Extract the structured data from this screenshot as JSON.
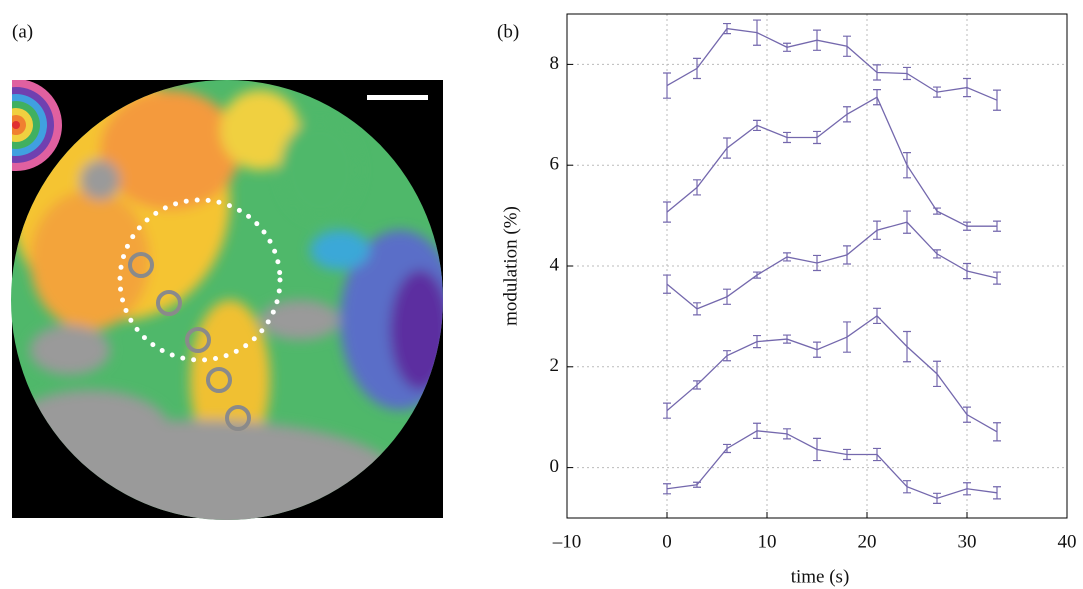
{
  "panel_a_label": "(a)",
  "chart_data": {
    "type": "line",
    "panel_label": "(b)",
    "xlabel": "time (s)",
    "ylabel": "modulation (%)",
    "x": [
      0,
      3,
      6,
      9,
      12,
      15,
      18,
      21,
      24,
      27,
      30,
      33
    ],
    "series": [
      {
        "color": "#7468ad",
        "values": [
          7.58,
          7.92,
          8.71,
          8.63,
          8.34,
          8.48,
          8.36,
          7.84,
          7.82,
          7.45,
          7.54,
          7.29
        ],
        "errors": [
          0.25,
          0.2,
          0.1,
          0.25,
          0.08,
          0.2,
          0.2,
          0.15,
          0.12,
          0.1,
          0.18,
          0.2
        ]
      },
      {
        "color": "#7468ad",
        "values": [
          5.07,
          5.56,
          6.34,
          6.79,
          6.55,
          6.55,
          7.01,
          7.35,
          6.0,
          5.09,
          4.79,
          4.79
        ],
        "errors": [
          0.2,
          0.15,
          0.2,
          0.1,
          0.1,
          0.12,
          0.15,
          0.15,
          0.25,
          0.06,
          0.08,
          0.1
        ]
      },
      {
        "color": "#7468ad",
        "values": [
          3.64,
          3.15,
          3.39,
          3.82,
          4.18,
          4.06,
          4.22,
          4.71,
          4.87,
          4.24,
          3.9,
          3.76
        ],
        "errors": [
          0.18,
          0.12,
          0.15,
          0.06,
          0.08,
          0.15,
          0.18,
          0.18,
          0.22,
          0.08,
          0.15,
          0.12
        ]
      },
      {
        "color": "#7468ad",
        "values": [
          1.13,
          1.64,
          2.22,
          2.5,
          2.55,
          2.34,
          2.59,
          3.01,
          2.4,
          1.86,
          1.05,
          0.71
        ],
        "errors": [
          0.15,
          0.08,
          0.1,
          0.12,
          0.08,
          0.15,
          0.3,
          0.15,
          0.3,
          0.25,
          0.15,
          0.18
        ]
      },
      {
        "color": "#7468ad",
        "values": [
          -0.42,
          -0.34,
          0.38,
          0.73,
          0.67,
          0.36,
          0.26,
          0.26,
          -0.38,
          -0.61,
          -0.42,
          -0.5
        ],
        "errors": [
          0.1,
          0.05,
          0.08,
          0.15,
          0.1,
          0.22,
          0.1,
          0.12,
          0.12,
          0.1,
          0.12,
          0.12
        ]
      }
    ],
    "xlim": [
      -10,
      40
    ],
    "ylim": [
      -1,
      9
    ],
    "xticks": [
      {
        "value": -10,
        "label": "–10"
      },
      0,
      10,
      20,
      30,
      40
    ],
    "yticks": [
      0,
      2,
      4,
      6,
      8
    ],
    "grid": true
  }
}
